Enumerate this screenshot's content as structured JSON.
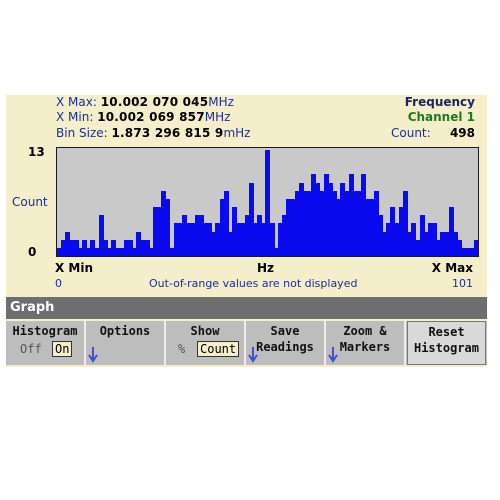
{
  "header": {
    "xmax_label": "X Max:",
    "xmax_value": "10.002 070 045",
    "xmax_unit": "MHz",
    "xmin_label": "X Min:",
    "xmin_value": "10.002 069 857",
    "xmin_unit": "MHz",
    "bin_label": "Bin Size:",
    "bin_value": "1.873 296 815 9",
    "bin_unit": "mHz",
    "title": "Frequency",
    "channel": "Channel 1",
    "count_label": "Count:",
    "count_value": "498"
  },
  "axes": {
    "y_max": "13",
    "y_label": "Count",
    "y_min": "0",
    "x_min_label": "X Min",
    "x_unit_label": "Hz",
    "x_max_label": "X Max",
    "x_start_index": "0",
    "x_end_index": "101",
    "note": "Out-of-range values are not displayed"
  },
  "chart_data": {
    "type": "bar",
    "ylabel": "Count",
    "ylim": [
      0,
      13
    ],
    "x_range": [
      0,
      101
    ],
    "values": [
      1,
      2,
      3,
      2,
      2,
      1,
      2,
      1,
      2,
      1,
      5,
      2,
      1,
      2,
      1,
      1,
      2,
      2,
      1,
      3,
      2,
      2,
      1,
      6,
      6,
      8,
      7,
      1,
      4,
      4,
      5,
      4,
      4,
      5,
      5,
      4,
      4,
      3,
      4,
      7,
      8,
      3,
      6,
      4,
      4,
      5,
      9,
      4,
      5,
      4,
      13,
      4,
      1,
      4,
      5,
      7,
      7,
      8,
      9,
      8,
      8,
      10,
      9,
      8,
      10,
      9,
      8,
      7,
      9,
      8,
      10,
      8,
      8,
      10,
      7,
      7,
      8,
      5,
      3,
      4,
      6,
      4,
      6,
      8,
      3,
      4,
      2,
      5,
      3,
      4,
      4,
      2,
      3,
      3,
      6,
      3,
      2,
      1,
      1,
      1,
      2
    ]
  },
  "menu": {
    "title": "Graph"
  },
  "softkeys": {
    "histogram": {
      "label": "Histogram",
      "opt_off": "Off",
      "opt_on": "On"
    },
    "options": {
      "label": "Options"
    },
    "show": {
      "label": "Show",
      "opt_pct": "%",
      "opt_count": "Count"
    },
    "save": {
      "label1": "Save",
      "label2": "Readings"
    },
    "zoom": {
      "label1": "Zoom &",
      "label2": "Markers"
    },
    "reset": {
      "label1": "Reset",
      "label2": "Histogram"
    }
  },
  "colors": {
    "bar": "#0a0aee",
    "plot_bg": "#c9c9c9",
    "screen_bg": "#f5eecb",
    "title": "#1c2460",
    "channel": "#1e7a1e"
  }
}
